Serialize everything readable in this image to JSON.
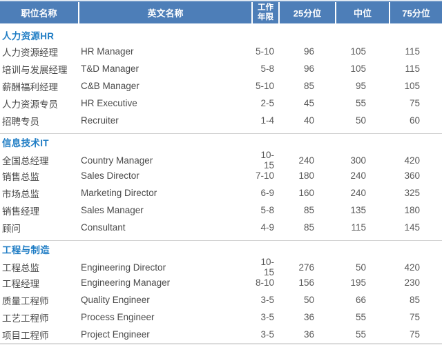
{
  "header": {
    "position_label": "职位名称",
    "english_label": "英文名称",
    "work_years_lines": [
      "工作",
      "年限"
    ],
    "p25_label": "25分位",
    "median_label": "中位",
    "p75_label": "75分位"
  },
  "sections": [
    {
      "title": "人力资源HR",
      "rows": [
        {
          "position": "人力资源经理",
          "english": "HR Manager",
          "years": "5-10",
          "p25": "96",
          "median": "105",
          "p75": "115"
        },
        {
          "position": "培训与发展经理",
          "english": "T&D Manager",
          "years": "5-8",
          "p25": "96",
          "median": "105",
          "p75": "115"
        },
        {
          "position": "薪酬福利经理",
          "english": "C&B Manager",
          "years": "5-10",
          "p25": "85",
          "median": "95",
          "p75": "105"
        },
        {
          "position": "人力资源专员",
          "english": "HR Executive",
          "years": "2-5",
          "p25": "45",
          "median": "55",
          "p75": "75"
        },
        {
          "position": "招聘专员",
          "english": "Recruiter",
          "years": "1-4",
          "p25": "40",
          "median": "50",
          "p75": "60"
        }
      ]
    },
    {
      "title": "信息技术IT",
      "rows": [
        {
          "position": "全国总经理",
          "english": "Country Manager",
          "years": "10-15",
          "p25": "240",
          "median": "300",
          "p75": "420"
        },
        {
          "position": "销售总监",
          "english": "Sales Director",
          "years": "7-10",
          "p25": "180",
          "median": "240",
          "p75": "360"
        },
        {
          "position": "市场总监",
          "english": "Marketing Director",
          "years": "6-9",
          "p25": "160",
          "median": "240",
          "p75": "325"
        },
        {
          "position": "销售经理",
          "english": "Sales Manager",
          "years": "5-8",
          "p25": "85",
          "median": "135",
          "p75": "180"
        },
        {
          "position": "顾问",
          "english": "Consultant",
          "years": "4-9",
          "p25": "85",
          "median": "115",
          "p75": "145"
        }
      ]
    },
    {
      "title": "工程与制造",
      "rows": [
        {
          "position": "工程总监",
          "english": "Engineering Director",
          "years": "10-15",
          "p25": "276",
          "median": "50",
          "p75": "420"
        },
        {
          "position": "工程经理",
          "english": "Engineering Manager",
          "years": "8-10",
          "p25": "156",
          "median": "195",
          "p75": "230"
        },
        {
          "position": "质量工程师",
          "english": "Quality Engineer",
          "years": "3-5",
          "p25": "50",
          "median": "66",
          "p75": "85"
        },
        {
          "position": "工艺工程师",
          "english": "Process Engineer",
          "years": "3-5",
          "p25": "36",
          "median": "55",
          "p75": "75"
        },
        {
          "position": "项目工程师",
          "english": "Project Engineer",
          "years": "3-5",
          "p25": "36",
          "median": "55",
          "p75": "75"
        }
      ]
    }
  ],
  "colors": {
    "header_bg": "#4d7eb8",
    "header_top_edge": "#7299c7",
    "header_text": "#ffffff",
    "section_title_text": "#1e7cc4",
    "body_text": "#4a4a4a",
    "number_text": "#585858",
    "divider": "#d2d2d2",
    "bottom_border": "#dcdcdc"
  }
}
